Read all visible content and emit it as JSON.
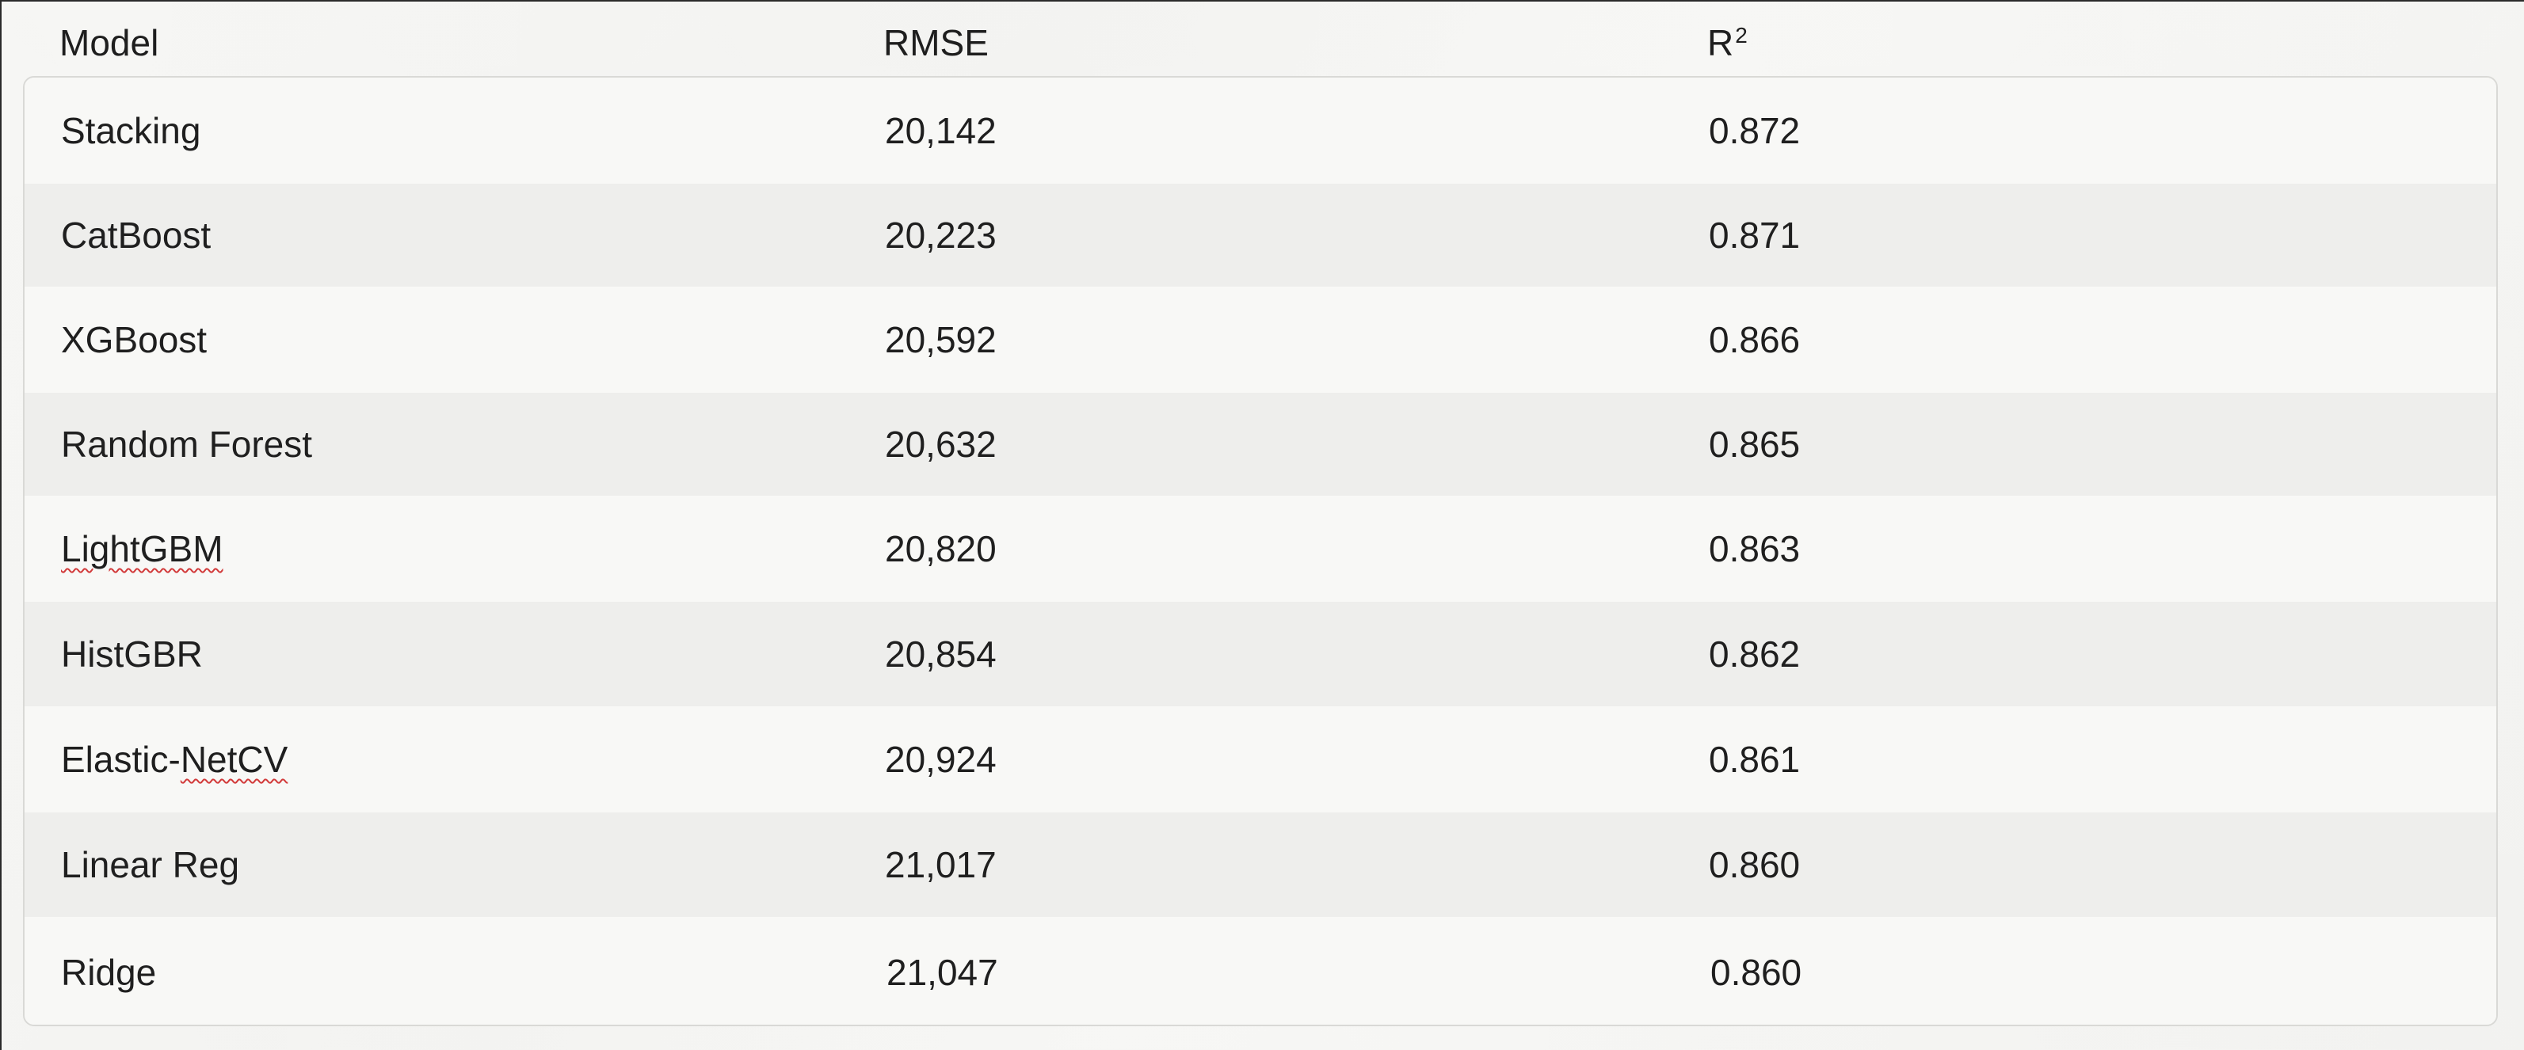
{
  "table": {
    "headers": {
      "model": "Model",
      "rmse": "RMSE",
      "r2_base": "R",
      "r2_sup": "2"
    },
    "rows": [
      {
        "model": "Stacking",
        "rmse": "20,142",
        "r2": "0.872"
      },
      {
        "model": "CatBoost",
        "rmse": "20,223",
        "r2": "0.871"
      },
      {
        "model": "XGBoost",
        "rmse": "20,592",
        "r2": "0.866"
      },
      {
        "model": "Random Forest",
        "rmse": "20,632",
        "r2": "0.865"
      },
      {
        "model": "LightGBM",
        "rmse": "20,820",
        "r2": "0.863"
      },
      {
        "model": "HistGBR",
        "rmse": "20,854",
        "r2": "0.862"
      },
      {
        "model": "Elastic-NetCV",
        "rmse": "20,924",
        "r2": "0.861"
      },
      {
        "model": "Linear Reg",
        "rmse": "21,017",
        "r2": "0.860"
      },
      {
        "model": "Ridge",
        "rmse": "21,047",
        "r2": "0.860"
      }
    ]
  }
}
